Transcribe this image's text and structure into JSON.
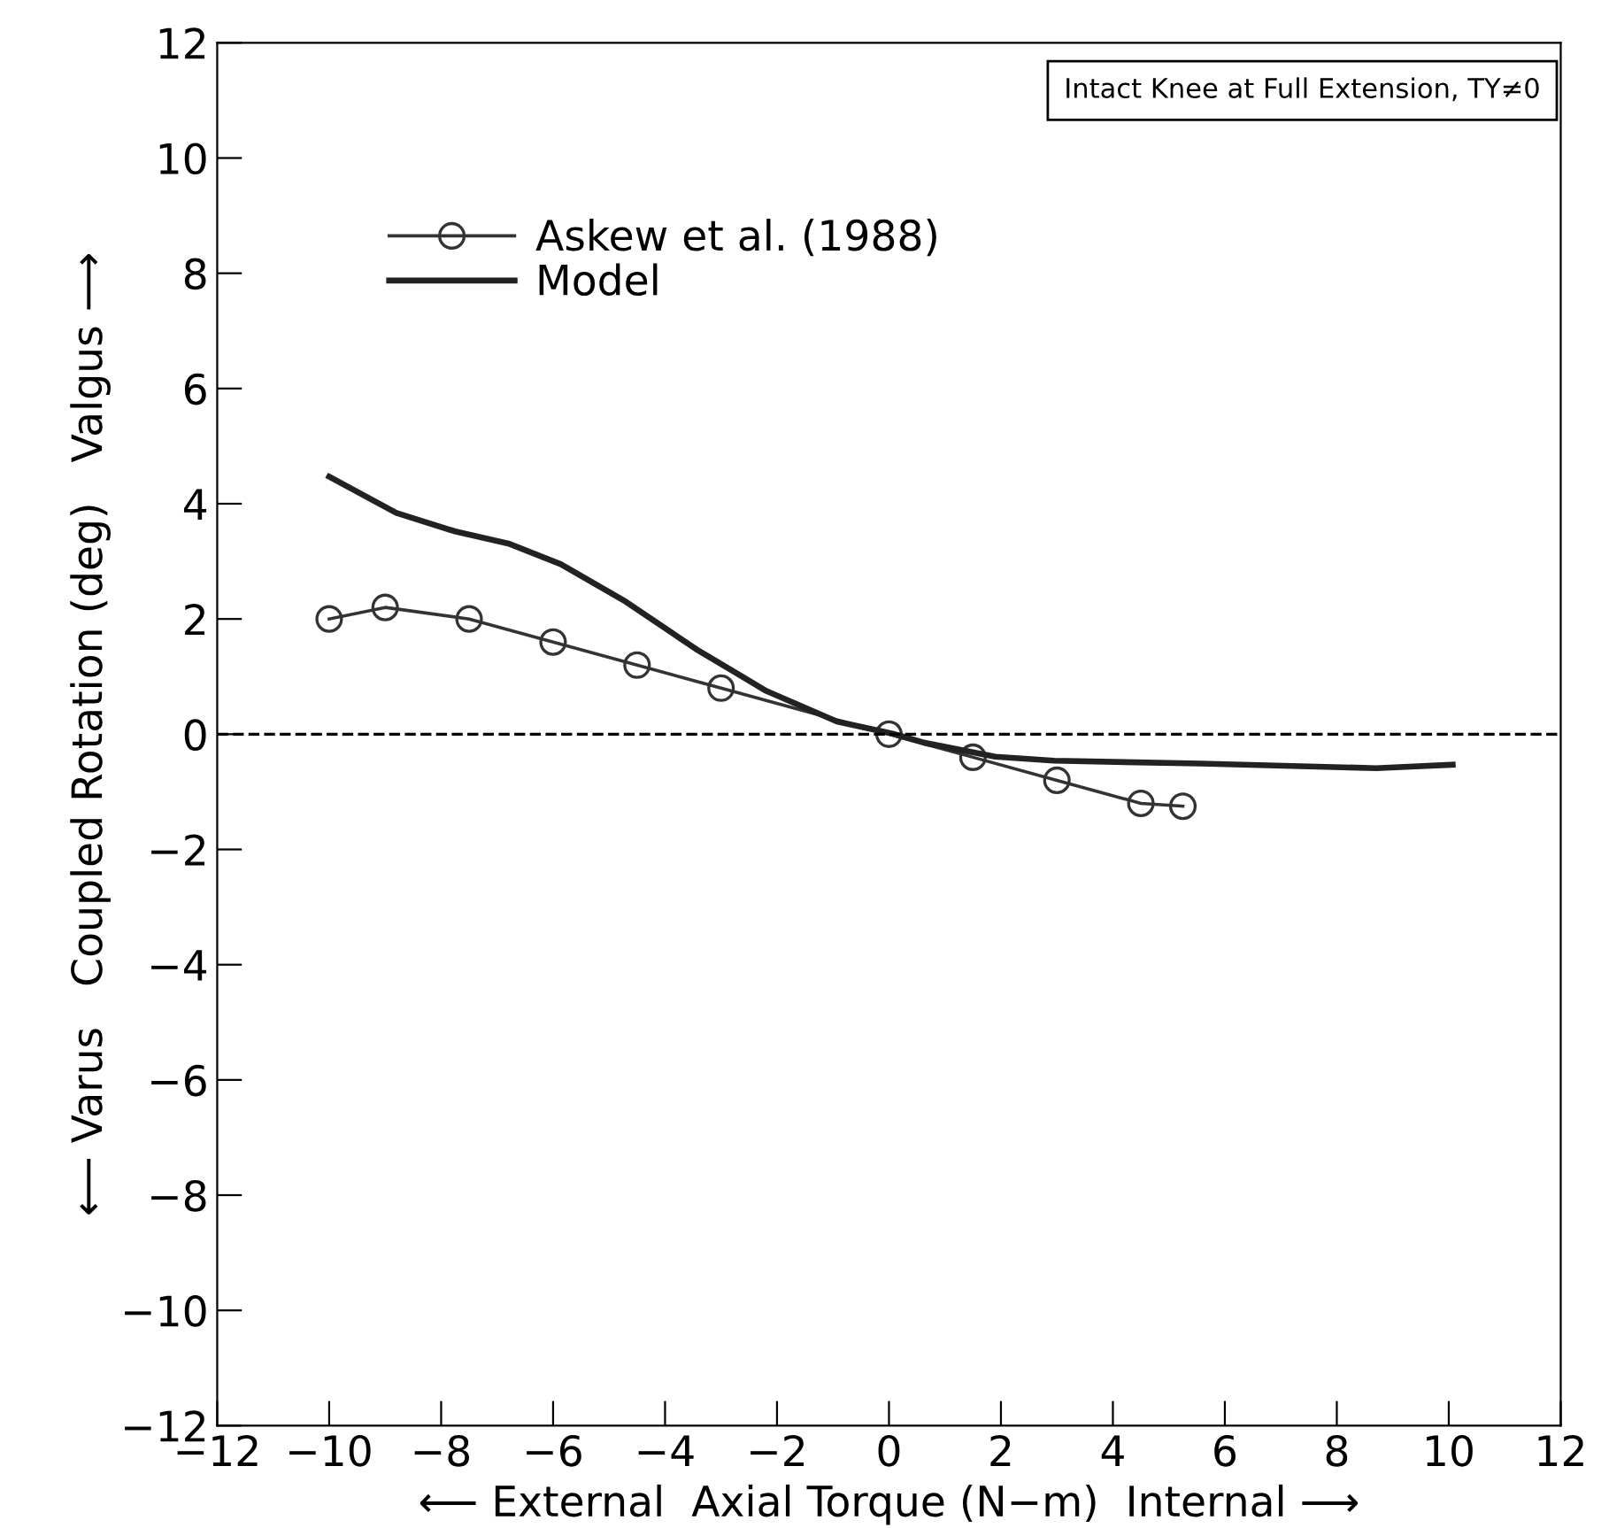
{
  "chart_data": {
    "type": "line",
    "xlabel": "⟵ External  Axial Torque (N−m)  Internal ⟶",
    "ylabel": "⟵ Varus   Coupled Rotation (deg)   Valgus ⟶",
    "annotations": [
      "Intact Knee at Full Extension, TY≠0"
    ],
    "xlim": [
      -12,
      12
    ],
    "ylim": [
      -12,
      12
    ],
    "xticks": [
      -12,
      -10,
      -8,
      -6,
      -4,
      -2,
      0,
      2,
      4,
      6,
      8,
      10,
      12
    ],
    "yticks": [
      -12,
      -10,
      -8,
      -6,
      -4,
      -2,
      0,
      2,
      4,
      6,
      8,
      10,
      12
    ],
    "grid": false,
    "legend": "top left",
    "ref_lines": [
      {
        "axis": "y",
        "value": 0,
        "label": null,
        "line_style": "dashed",
        "color": "#000000"
      }
    ],
    "series": [
      {
        "name": "Askew et al. (1988)",
        "color": "#333333",
        "marker": "circle",
        "line_style": "solid",
        "x": [
          -10,
          -9,
          -7.5,
          -6,
          -4.5,
          -3,
          0,
          1.5,
          3,
          4.5,
          5.25
        ],
        "values": [
          2.0,
          2.2,
          2.0,
          1.6,
          1.2,
          0.8,
          0,
          -0.4,
          -0.8,
          -1.2,
          -1.25
        ]
      },
      {
        "name": "Model",
        "color": "#222222",
        "marker": "none",
        "line_style": "solid",
        "x": [
          -10,
          -8.8,
          -7.75,
          -6.8,
          -5.86,
          -4.7,
          -3.45,
          -2.19,
          -0.93,
          0.1,
          0.64,
          1.9,
          2.95,
          5.57,
          8.7,
          10.07
        ],
        "values": [
          4.47,
          3.84,
          3.52,
          3.31,
          2.95,
          2.3,
          1.48,
          0.75,
          0.22,
          0.0,
          -0.15,
          -0.39,
          -0.46,
          -0.51,
          -0.59,
          -0.53
        ]
      }
    ]
  }
}
